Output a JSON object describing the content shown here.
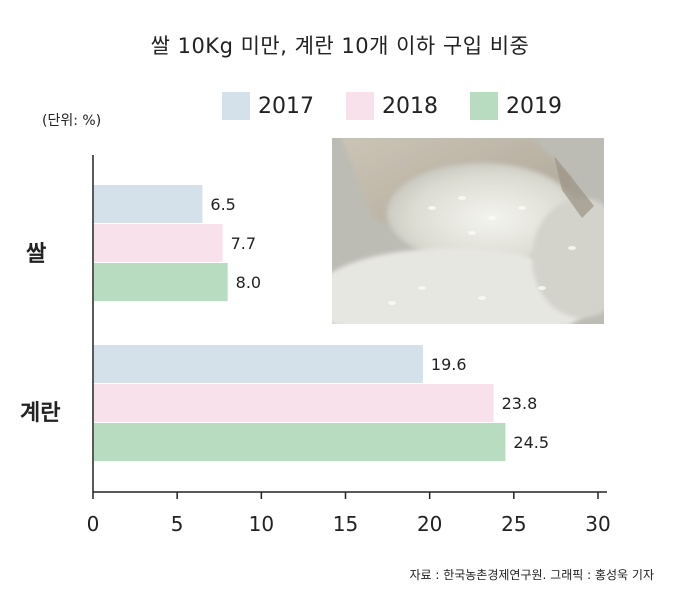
{
  "chart_data": {
    "type": "bar",
    "orientation": "horizontal",
    "title": "쌀 10Kg 미만, 계란 10개 이하 구입 비중",
    "unit_note": "(단위: %)",
    "categories": [
      "쌀",
      "계란"
    ],
    "series": [
      {
        "name": "2017",
        "color": "#d5e1ea",
        "values": [
          6.5,
          19.6
        ]
      },
      {
        "name": "2018",
        "color": "#f9e1ec",
        "values": [
          7.7,
          23.8
        ]
      },
      {
        "name": "2019",
        "color": "#b8dcbf",
        "values": [
          8.0,
          24.5
        ]
      }
    ],
    "x_ticks": [
      "0",
      "5",
      "10",
      "15",
      "20",
      "25",
      "30"
    ],
    "xlim": [
      0,
      30
    ],
    "grid": false,
    "legend_position": "top"
  },
  "source": "자료 : 한국농촌경제연구원. 그래픽 : 홍성욱 기자",
  "photo": {
    "icon": "rice-photo"
  }
}
